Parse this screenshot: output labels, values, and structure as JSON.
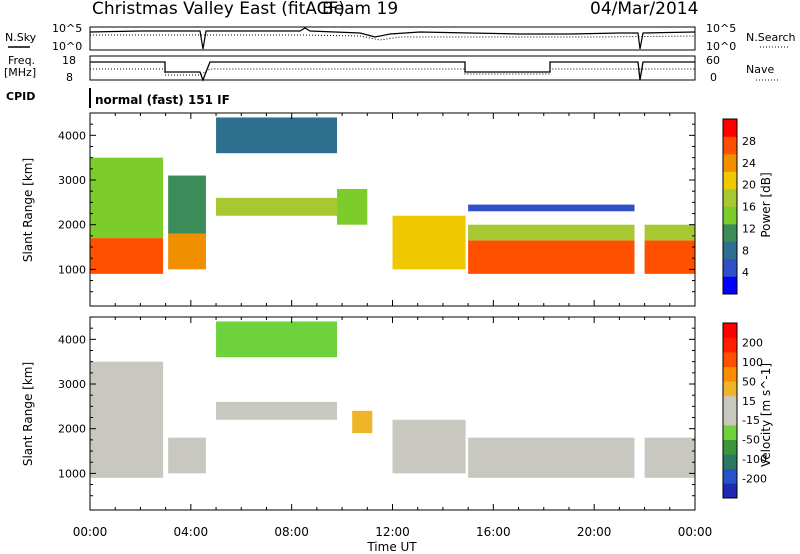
{
  "header": {
    "title": "Christmas Valley East (fitACF)",
    "beam": "Beam 19",
    "date": "04/Mar/2014"
  },
  "strip_panels": {
    "nsky": {
      "label": "N.Sky",
      "tick_high": "10^5",
      "tick_low": "10^0"
    },
    "nsearch": {
      "label": "N.Search",
      "tick_high": "10^5",
      "tick_low": "10^0"
    },
    "freq": {
      "label_line1": "Freq.",
      "label_line2": "[MHz]",
      "tick_high": "18",
      "tick_low": "8"
    },
    "nave": {
      "label": "Nave",
      "tick_high": "60",
      "tick_low": "0"
    },
    "cpid": {
      "label": "CPID",
      "value": "normal (fast) 151 IF"
    }
  },
  "colors": {
    "power_scale": [
      "#0000ff",
      "#3050c8",
      "#2e6e8e",
      "#3c8c5a",
      "#7ccd2b",
      "#a8c832",
      "#f0c800",
      "#f09000",
      "#ff5000",
      "#ff0000"
    ],
    "velocity_scale": [
      "#1e28b4",
      "#2850c8",
      "#2d7860",
      "#3c963c",
      "#6ed23c",
      "#c8c8c0",
      "#c8c8c0",
      "#f0b428",
      "#ff8c00",
      "#ff5000",
      "#ff1e00",
      "#ff0000"
    ]
  },
  "chart_data": [
    {
      "type": "heatmap",
      "panel": "power",
      "ylabel": "Slant Range [km]",
      "ylim": [
        180,
        4500
      ],
      "yticks": [
        1000,
        2000,
        3000,
        4000
      ],
      "xlim": [
        0,
        24
      ],
      "colorbar": {
        "label": "Power [dB]",
        "ticks": [
          "28",
          "24",
          "20",
          "16",
          "12",
          "8",
          "4"
        ],
        "range": [
          0,
          30
        ]
      },
      "regions": [
        {
          "t0": 0.0,
          "t1": 2.9,
          "r0": 900,
          "r1": 1700,
          "value": 26
        },
        {
          "t0": 0.0,
          "t1": 2.9,
          "r0": 1700,
          "r1": 3500,
          "value": 14
        },
        {
          "t0": 3.1,
          "t1": 4.6,
          "r0": 1000,
          "r1": 1800,
          "value": 22
        },
        {
          "t0": 3.1,
          "t1": 4.6,
          "r0": 1800,
          "r1": 3100,
          "value": 11
        },
        {
          "t0": 5.0,
          "t1": 9.8,
          "r0": 2200,
          "r1": 2600,
          "value": 16
        },
        {
          "t0": 5.0,
          "t1": 9.8,
          "r0": 3600,
          "r1": 4400,
          "value": 7
        },
        {
          "t0": 9.8,
          "t1": 11.0,
          "r0": 2000,
          "r1": 2800,
          "value": 12
        },
        {
          "t0": 12.0,
          "t1": 14.9,
          "r0": 1000,
          "r1": 2200,
          "value": 18
        },
        {
          "t0": 15.0,
          "t1": 21.6,
          "r0": 900,
          "r1": 1650,
          "value": 26
        },
        {
          "t0": 15.0,
          "t1": 21.6,
          "r0": 1650,
          "r1": 2000,
          "value": 16
        },
        {
          "t0": 15.0,
          "t1": 21.6,
          "r0": 2300,
          "r1": 2450,
          "value": 5
        },
        {
          "t0": 22.0,
          "t1": 24.0,
          "r0": 900,
          "r1": 1650,
          "value": 26
        },
        {
          "t0": 22.0,
          "t1": 24.0,
          "r0": 1650,
          "r1": 2000,
          "value": 15
        }
      ]
    },
    {
      "type": "heatmap",
      "panel": "velocity",
      "ylabel": "Slant Range [km]",
      "xlabel": "Time UT",
      "ylim": [
        180,
        4500
      ],
      "yticks": [
        1000,
        2000,
        3000,
        4000
      ],
      "xlim": [
        0,
        24
      ],
      "xticks": [
        "00:00",
        "04:00",
        "08:00",
        "12:00",
        "16:00",
        "20:00",
        "00:00"
      ],
      "colorbar": {
        "label": "Velocity [m s^-1]",
        "ticks": [
          "200",
          "100",
          "50",
          "15",
          "-15",
          "-50",
          "-100",
          "-200"
        ],
        "range": [
          -250,
          250
        ]
      },
      "regions": [
        {
          "t0": 0.0,
          "t1": 2.9,
          "r0": 900,
          "r1": 1700,
          "value": 0
        },
        {
          "t0": 0.0,
          "t1": 2.9,
          "r0": 1700,
          "r1": 3500,
          "value": -40
        },
        {
          "t0": 3.1,
          "t1": 4.6,
          "r0": 1000,
          "r1": 1800,
          "value": 0
        },
        {
          "t0": 5.0,
          "t1": 9.8,
          "r0": 2200,
          "r1": 2600,
          "value": 0
        },
        {
          "t0": 5.0,
          "t1": 9.8,
          "r0": 3600,
          "r1": 4400,
          "value": -60
        },
        {
          "t0": 10.4,
          "t1": 11.2,
          "r0": 1900,
          "r1": 2400,
          "value": 60
        },
        {
          "t0": 12.0,
          "t1": 14.9,
          "r0": 1000,
          "r1": 2200,
          "value": 40
        },
        {
          "t0": 15.0,
          "t1": 21.6,
          "r0": 900,
          "r1": 1800,
          "value": 0
        },
        {
          "t0": 22.0,
          "t1": 24.0,
          "r0": 900,
          "r1": 1800,
          "value": 0
        }
      ]
    }
  ]
}
